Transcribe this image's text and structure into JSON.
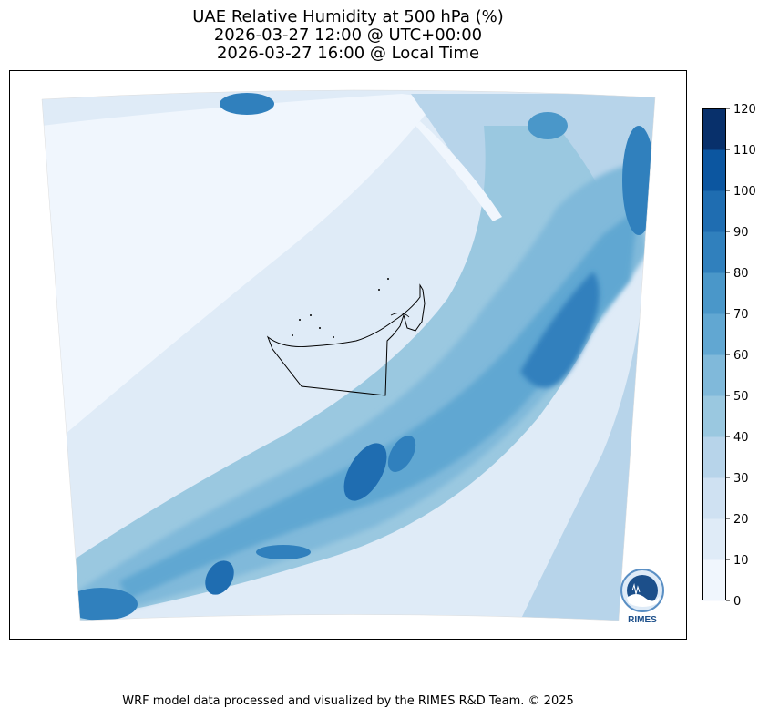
{
  "title": {
    "line1": "UAE Relative Humidity at 500 hPa (%)",
    "line2": "2026-03-27 12:00 @ UTC+00:00",
    "line3": "2026-03-27 16:00 @ Local Time"
  },
  "chart_data": {
    "type": "heatmap",
    "title": "UAE Relative Humidity at 500 hPa (%)",
    "variable": "Relative Humidity at 500 hPa",
    "units": "%",
    "colorbar": {
      "levels": [
        0,
        10,
        20,
        30,
        40,
        50,
        60,
        70,
        80,
        90,
        100,
        110,
        120
      ],
      "tick_labels": [
        "0",
        "10",
        "20",
        "30",
        "40",
        "50",
        "60",
        "70",
        "80",
        "90",
        "100",
        "110",
        "120"
      ],
      "colors": [
        "#f0f6fd",
        "#dfebf7",
        "#cfe1f2",
        "#b7d4ea",
        "#9ac8e0",
        "#80b9da",
        "#61a7d2",
        "#4a97c9",
        "#3080bd",
        "#1f6db1",
        "#0c56a0",
        "#08306b"
      ],
      "range": [
        0,
        120
      ]
    }
  },
  "logo": {
    "text": "RIMES"
  },
  "footer": "WRF model data processed and visualized by the RIMES R&D Team. © 2025"
}
